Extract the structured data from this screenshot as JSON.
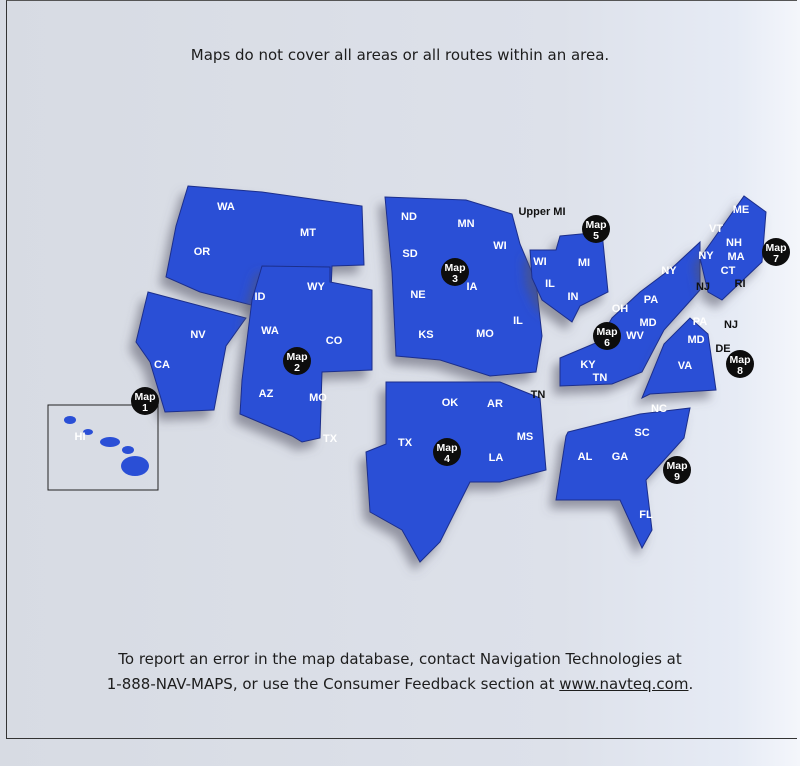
{
  "header_note": "Maps do not cover all areas or all routes within an area.",
  "footer_note": {
    "line1": "To report an error in the map database, contact Navigation Technologies at",
    "line2_prefix": "1-888-NAV-MAPS, or use the Consumer Feedback section at ",
    "link": "www.navteq.com",
    "line2_suffix": "."
  },
  "colors": {
    "region_fill": "#2a4fd6",
    "marker": "#0d0d0d",
    "background": "#d9dde6"
  },
  "map_markers": [
    {
      "label": "Map",
      "number": "1"
    },
    {
      "label": "Map",
      "number": "2"
    },
    {
      "label": "Map",
      "number": "3"
    },
    {
      "label": "Map",
      "number": "4"
    },
    {
      "label": "Map",
      "number": "5"
    },
    {
      "label": "Map",
      "number": "6"
    },
    {
      "label": "Map",
      "number": "7"
    },
    {
      "label": "Map",
      "number": "8"
    },
    {
      "label": "Map",
      "number": "9"
    }
  ],
  "state_labels": [
    "WA",
    "OR",
    "MT",
    "ID",
    "WY",
    "CA",
    "NV",
    "HI",
    "WA",
    "CO",
    "AZ",
    "MO",
    "TX",
    "ND",
    "MN",
    "SD",
    "WI",
    "NE",
    "IA",
    "KS",
    "MO",
    "IL",
    "WI",
    "MI",
    "IL",
    "IN",
    "NY",
    "OH",
    "PA",
    "MD",
    "WV",
    "KY",
    "TN",
    "ME",
    "VT",
    "NH",
    "NY",
    "MA",
    "CT",
    "PA",
    "MD",
    "VA",
    "OK",
    "AR",
    "TX",
    "LA",
    "MS",
    "NC",
    "SC",
    "AL",
    "GA",
    "FL"
  ],
  "outside_labels": [
    "Upper MI",
    "TN",
    "NJ",
    "RI",
    "NJ",
    "DE"
  ]
}
